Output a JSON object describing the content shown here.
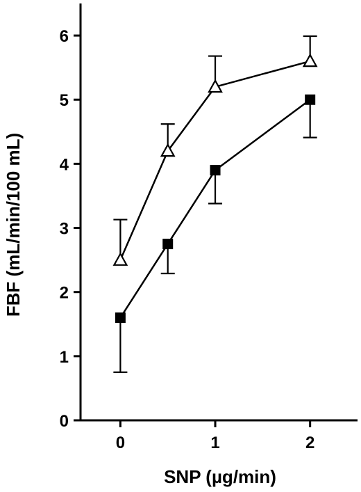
{
  "chart_data": {
    "type": "line",
    "title": "",
    "xlabel": "SNP (µg/min)",
    "ylabel": "FBF (mL/min/100 mL)",
    "xlim": [
      -0.42,
      2.5
    ],
    "ylim": [
      0,
      6.5
    ],
    "x_ticks": [
      "0",
      "1",
      "2"
    ],
    "x_tick_values": [
      0,
      1,
      2
    ],
    "y_ticks": [
      "0",
      "1",
      "2",
      "3",
      "4",
      "5",
      "6"
    ],
    "y_tick_values": [
      0,
      1,
      2,
      3,
      4,
      5,
      6
    ],
    "x_scale": "linear",
    "grid": false,
    "legend": "none",
    "series": [
      {
        "marker": "open-triangle",
        "color": "#000000",
        "points": [
          {
            "x": 0,
            "y": 2.5,
            "err_up": 0.63,
            "err_down": 0
          },
          {
            "x": 0.5,
            "y": 4.2,
            "err_up": 0.42,
            "err_down": 0
          },
          {
            "x": 1,
            "y": 5.2,
            "err_up": 0.48,
            "err_down": 0
          },
          {
            "x": 2,
            "y": 5.6,
            "err_up": 0.39,
            "err_down": 0
          }
        ]
      },
      {
        "marker": "filled-square",
        "color": "#000000",
        "points": [
          {
            "x": 0,
            "y": 1.6,
            "err_up": 0,
            "err_down": 0.85
          },
          {
            "x": 0.5,
            "y": 2.75,
            "err_up": 0,
            "err_down": 0.46
          },
          {
            "x": 1,
            "y": 3.9,
            "err_up": 0,
            "err_down": 0.52
          },
          {
            "x": 2,
            "y": 5.0,
            "err_up": 0,
            "err_down": 0.59
          }
        ]
      }
    ]
  }
}
